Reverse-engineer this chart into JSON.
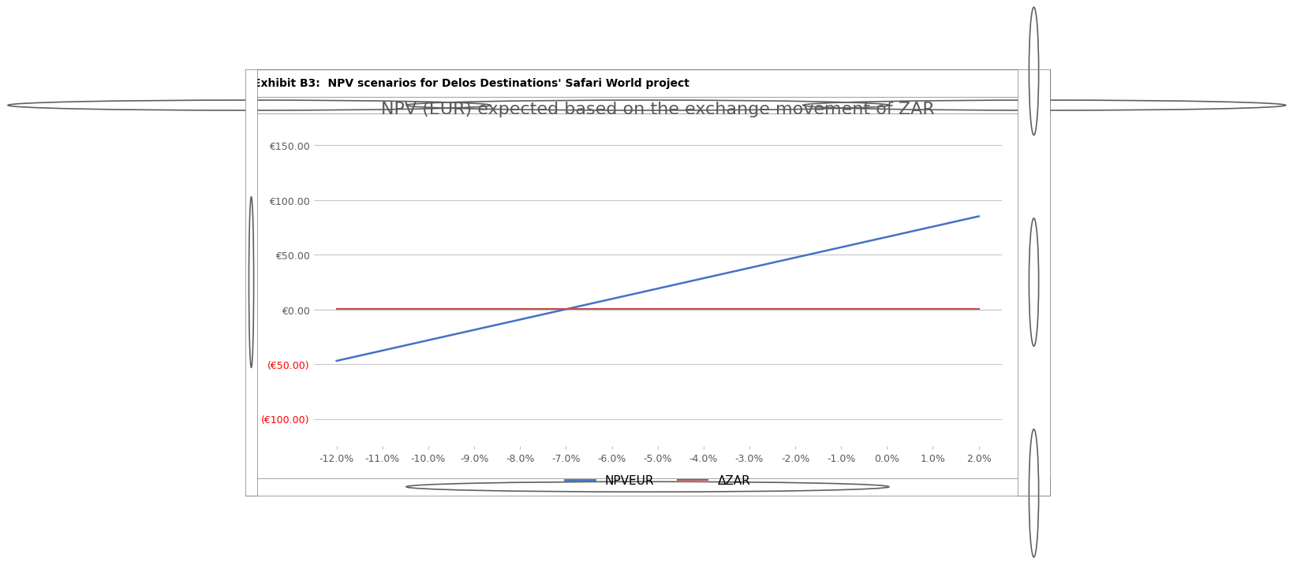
{
  "title": "NPV (EUR) expected based on the exchange movement of ZAR",
  "exhibit_title": "Exhibit B3:  NPV scenarios for Delos Destinations' Safari World project",
  "x_labels": [
    "-12.0%",
    "-11.0%",
    "-10.0%",
    "-9.0%",
    "-8.0%",
    "-7.0%",
    "-6.0%",
    "-5.0%",
    "-4.0%",
    "-3.0%",
    "-2.0%",
    "-1.0%",
    "0.0%",
    "1.0%",
    "2.0%"
  ],
  "npv_eur_values": [
    -47.0,
    -37.57,
    -28.14,
    -18.71,
    -9.29,
    0.14,
    9.57,
    19.0,
    28.43,
    37.86,
    47.29,
    56.71,
    66.14,
    75.57,
    85.0
  ],
  "delta_zar_values": [
    0.5,
    0.5,
    0.5,
    0.5,
    0.5,
    0.5,
    0.5,
    0.5,
    0.5,
    0.5,
    0.5,
    0.5,
    0.5,
    0.5,
    0.5
  ],
  "npv_color": "#4472C4",
  "delta_color": "#C0504D",
  "background_color": "#FFFFFF",
  "plot_bg_color": "#FFFFFF",
  "grid_color": "#C8C8C8",
  "title_color": "#595959",
  "ytick_neg_color": "#FF0000",
  "ytick_pos_color": "#595959",
  "xtick_color": "#595959",
  "ylim": [
    -125,
    165
  ],
  "yticks": [
    -100,
    -50,
    0,
    50,
    100,
    150
  ],
  "legend_npv": "NPVEUR",
  "legend_delta": "ΔZAR",
  "exhibit_border_color": "#808080",
  "title_fontsize": 16,
  "exhibit_fontsize": 10,
  "legend_fontsize": 11,
  "xtick_fontsize": 9,
  "ytick_fontsize": 9
}
